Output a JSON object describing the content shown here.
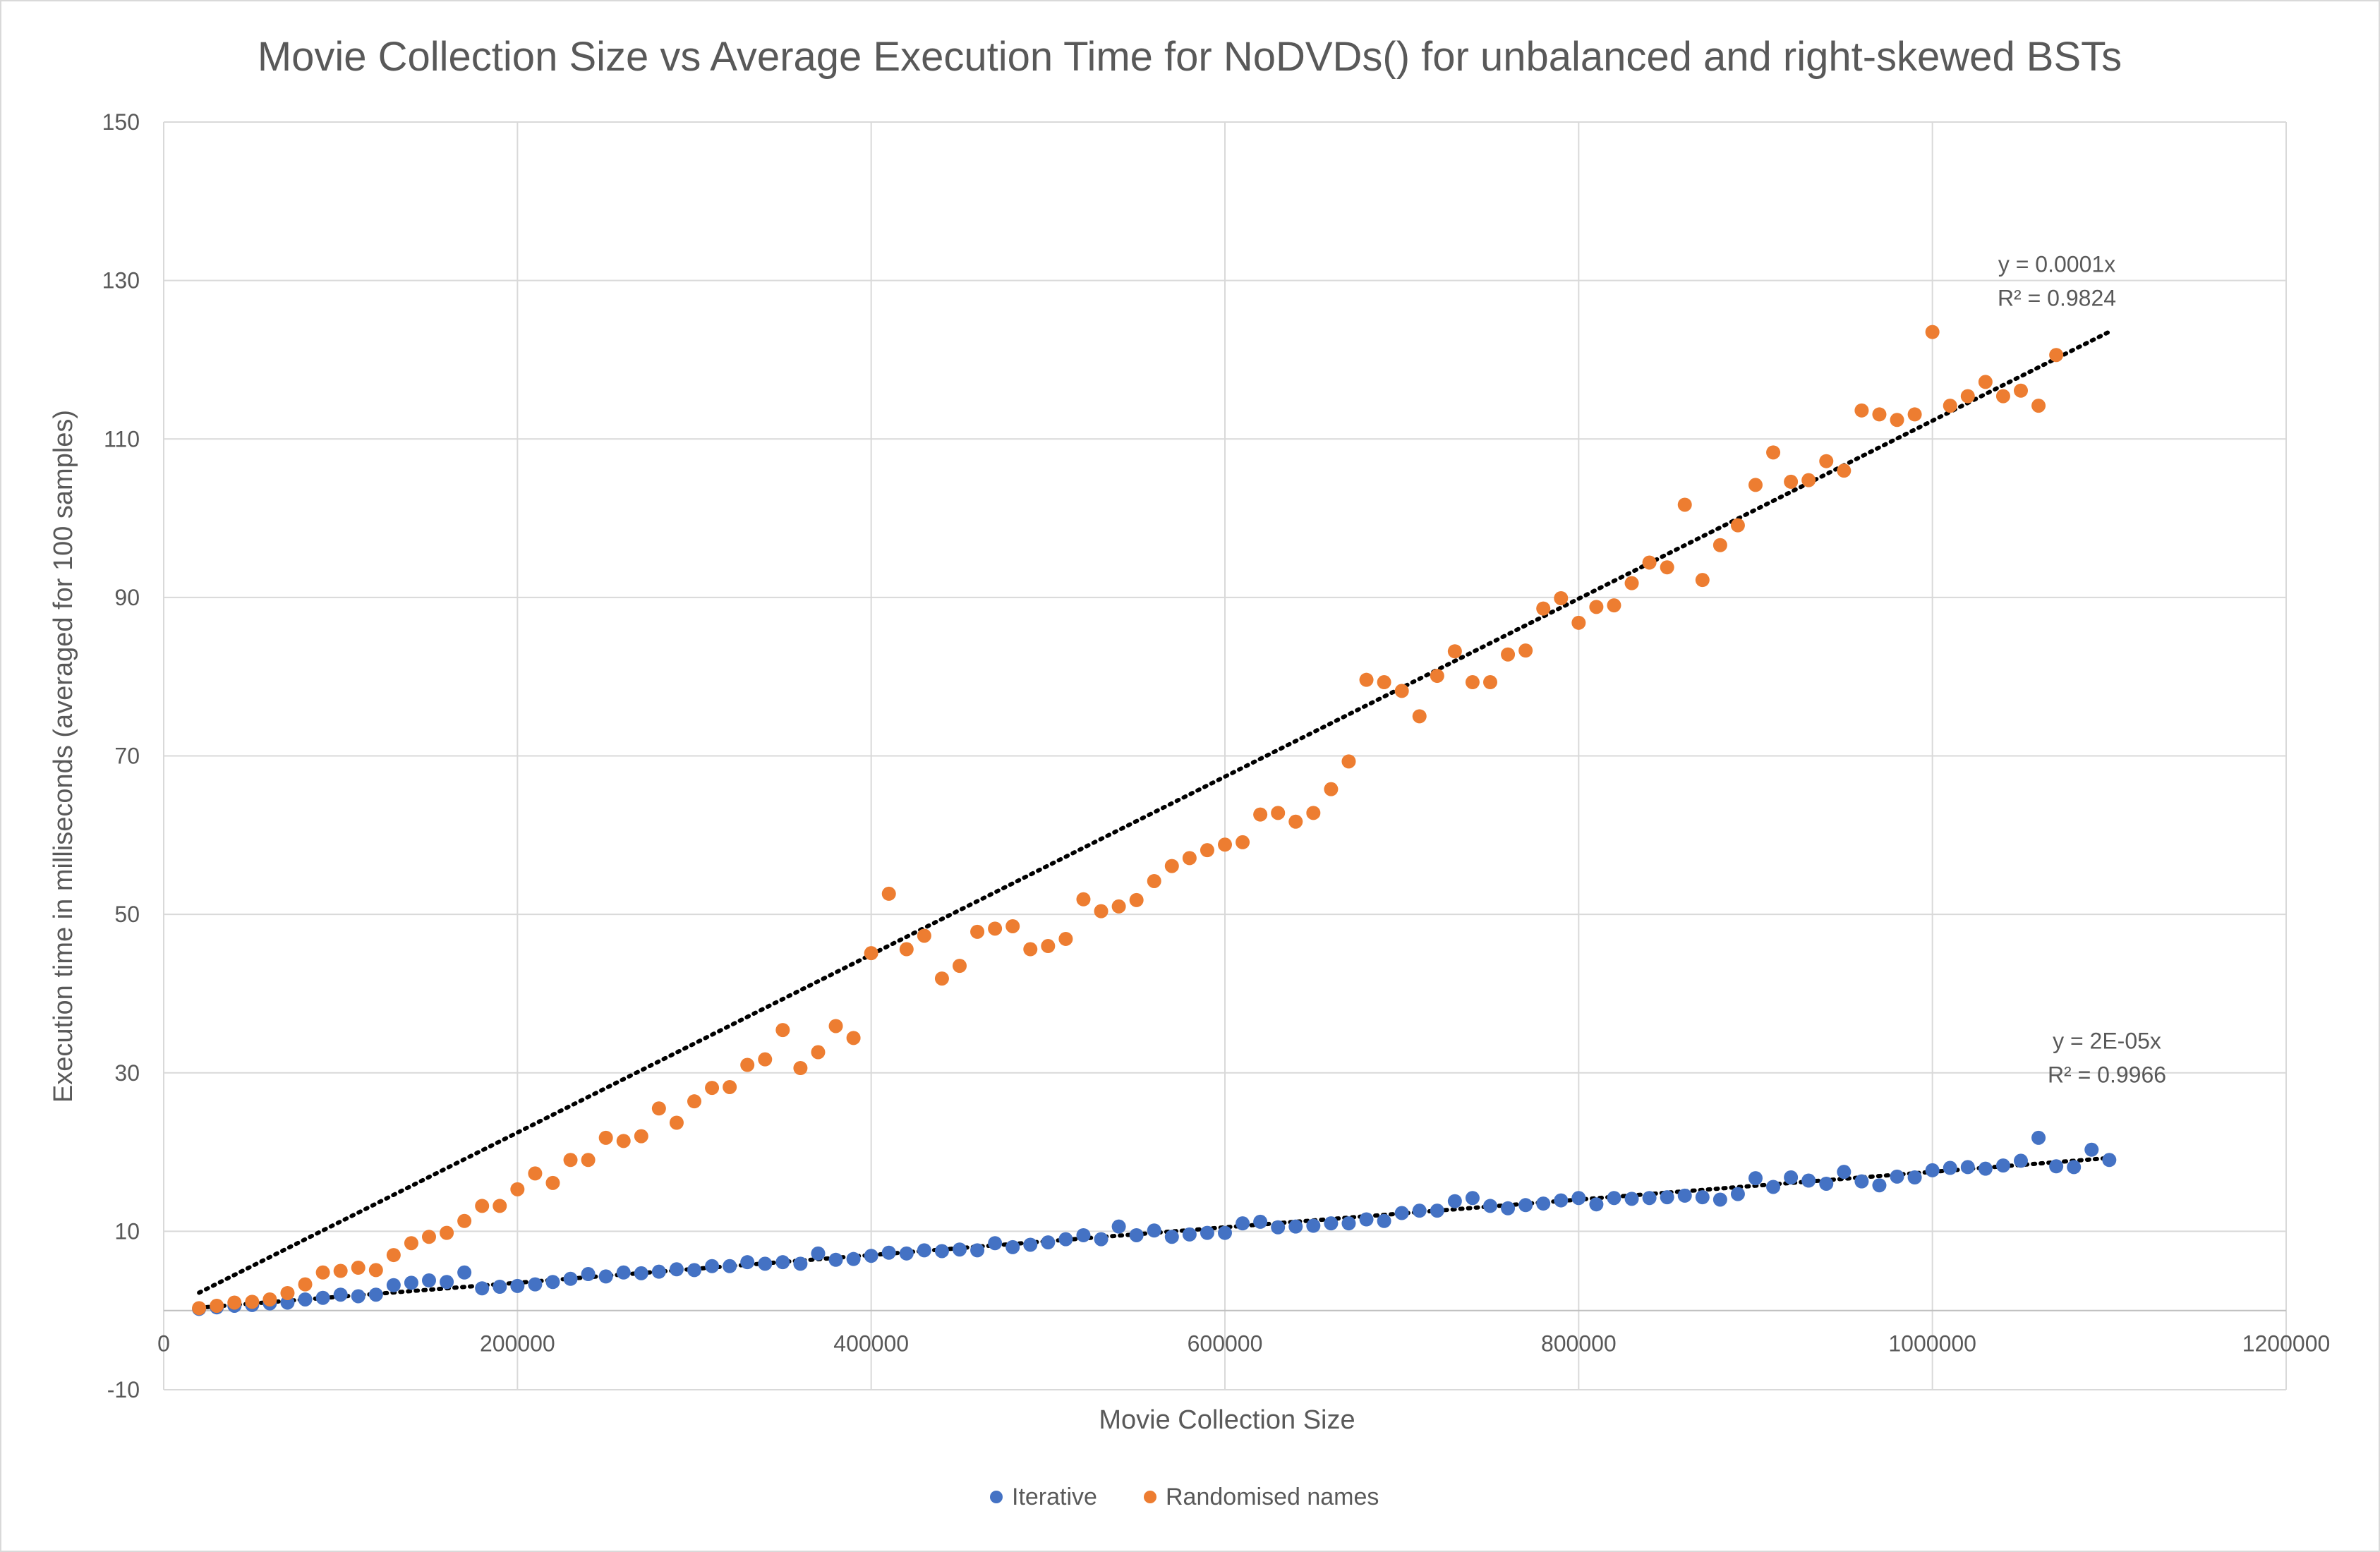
{
  "chart_data": {
    "type": "scatter",
    "title": "Movie Collection Size vs Average Execution Time for NoDVDs() for unbalanced and right-skewed BSTs",
    "xlabel": "Movie Collection Size",
    "ylabel": "Execution time in milliseconds (averaged for 100 samples)",
    "xlim": [
      0,
      1200000
    ],
    "ylim": [
      -10,
      150
    ],
    "x_ticks": [
      0,
      200000,
      400000,
      600000,
      800000,
      1000000,
      1200000
    ],
    "y_ticks": [
      -10,
      10,
      30,
      50,
      70,
      90,
      110,
      130,
      150
    ],
    "x_tick_labels": [
      "0",
      "200000",
      "400000",
      "600000",
      "800000",
      "1000000",
      "1200000"
    ],
    "y_tick_labels": [
      "-10",
      "10",
      "30",
      "50",
      "70",
      "90",
      "110",
      "130",
      "150"
    ],
    "grid": true,
    "legend_position": "bottom",
    "series": [
      {
        "name": "Iterative",
        "color": "#4472c4",
        "x": [
          20000,
          30000,
          40000,
          50000,
          60000,
          70000,
          80000,
          90000,
          100000,
          110000,
          120000,
          130000,
          140000,
          150000,
          160000,
          170000,
          180000,
          190000,
          200000,
          210000,
          220000,
          230000,
          240000,
          250000,
          260000,
          270000,
          280000,
          290000,
          300000,
          310000,
          320000,
          330000,
          340000,
          350000,
          360000,
          370000,
          380000,
          390000,
          400000,
          410000,
          420000,
          430000,
          440000,
          450000,
          460000,
          470000,
          480000,
          490000,
          500000,
          510000,
          520000,
          530000,
          540000,
          550000,
          560000,
          570000,
          580000,
          590000,
          600000,
          610000,
          620000,
          630000,
          640000,
          650000,
          660000,
          670000,
          680000,
          690000,
          700000,
          710000,
          720000,
          730000,
          740000,
          750000,
          760000,
          770000,
          780000,
          790000,
          800000,
          810000,
          820000,
          830000,
          840000,
          850000,
          860000,
          870000,
          880000,
          890000,
          900000,
          910000,
          920000,
          930000,
          940000,
          950000,
          960000,
          970000,
          980000,
          990000,
          1000000,
          1010000,
          1020000,
          1030000,
          1040000,
          1050000,
          1060000,
          1070000,
          1080000,
          1090000,
          1100000
        ],
        "y": [
          0.2,
          0.4,
          0.6,
          0.7,
          0.9,
          1.0,
          1.4,
          1.6,
          2.0,
          1.8,
          2.0,
          3.2,
          3.5,
          3.8,
          3.6,
          4.8,
          2.8,
          3.0,
          3.1,
          3.3,
          3.6,
          4.0,
          4.6,
          4.3,
          4.8,
          4.7,
          4.9,
          5.2,
          5.1,
          5.6,
          5.6,
          6.1,
          5.9,
          6.1,
          5.9,
          7.2,
          6.4,
          6.5,
          6.9,
          7.3,
          7.2,
          7.6,
          7.5,
          7.7,
          7.6,
          8.5,
          8.0,
          8.3,
          8.6,
          9.0,
          9.5,
          9.0,
          10.6,
          9.5,
          10.1,
          9.3,
          9.6,
          9.8,
          9.8,
          11.0,
          11.2,
          10.5,
          10.6,
          10.7,
          11.0,
          11.0,
          11.5,
          11.3,
          12.3,
          12.6,
          12.6,
          13.8,
          14.2,
          13.2,
          12.9,
          13.3,
          13.5,
          13.9,
          14.2,
          13.4,
          14.2,
          14.1,
          14.2,
          14.3,
          14.5,
          14.3,
          14.0,
          14.7,
          16.7,
          15.6,
          16.8,
          16.4,
          16.0,
          17.5,
          16.3,
          15.8,
          16.9,
          16.8,
          17.7,
          18.0,
          18.1,
          17.9,
          18.3,
          18.9,
          21.8,
          18.2,
          18.1,
          20.3,
          19.0
        ]
      },
      {
        "name": "Randomised names",
        "color": "#ed7d31",
        "x": [
          20000,
          30000,
          40000,
          50000,
          60000,
          70000,
          80000,
          90000,
          100000,
          110000,
          120000,
          130000,
          140000,
          150000,
          160000,
          170000,
          180000,
          190000,
          200000,
          210000,
          220000,
          230000,
          240000,
          250000,
          260000,
          270000,
          280000,
          290000,
          300000,
          310000,
          320000,
          330000,
          340000,
          350000,
          360000,
          370000,
          380000,
          390000,
          400000,
          410000,
          420000,
          430000,
          440000,
          450000,
          460000,
          470000,
          480000,
          490000,
          500000,
          510000,
          520000,
          530000,
          540000,
          550000,
          560000,
          570000,
          580000,
          590000,
          600000,
          610000,
          620000,
          630000,
          640000,
          650000,
          660000,
          670000,
          680000,
          690000,
          700000,
          710000,
          720000,
          730000,
          740000,
          750000,
          760000,
          770000,
          780000,
          790000,
          800000,
          810000,
          820000,
          830000,
          840000,
          850000,
          860000,
          870000,
          880000,
          890000,
          900000,
          910000,
          920000,
          930000,
          940000,
          950000,
          960000,
          970000,
          980000,
          990000,
          1000000,
          1010000,
          1020000,
          1030000,
          1040000,
          1050000,
          1060000,
          1070000
        ],
        "y": [
          0.3,
          0.6,
          1.0,
          1.1,
          1.4,
          2.2,
          3.3,
          4.8,
          5.0,
          5.4,
          5.1,
          7.0,
          8.5,
          9.3,
          9.8,
          11.3,
          13.2,
          13.2,
          15.3,
          17.3,
          16.1,
          19.0,
          19.0,
          21.8,
          21.4,
          22.0,
          25.5,
          23.7,
          26.4,
          28.1,
          28.2,
          31.0,
          31.7,
          35.4,
          30.6,
          32.6,
          35.9,
          34.4,
          45.1,
          52.6,
          45.6,
          47.3,
          41.9,
          43.5,
          47.8,
          48.2,
          48.5,
          45.6,
          46.0,
          46.9,
          51.9,
          50.4,
          51.0,
          51.8,
          54.2,
          56.1,
          57.1,
          58.1,
          58.8,
          59.1,
          62.6,
          62.8,
          61.7,
          62.8,
          65.8,
          69.3,
          79.6,
          79.3,
          78.2,
          75.0,
          80.1,
          83.2,
          79.3,
          79.3,
          82.8,
          83.3,
          88.6,
          89.9,
          86.8,
          88.8,
          89.0,
          91.8,
          94.4,
          93.8,
          101.7,
          92.2,
          96.6,
          99.1,
          104.2,
          108.3,
          104.6,
          104.8,
          107.2,
          106.0,
          113.6,
          113.1,
          112.4,
          113.1,
          123.5,
          114.2,
          115.4,
          117.2,
          115.4,
          116.1,
          114.2,
          120.6
        ]
      }
    ],
    "trendlines": [
      {
        "series": "Randomised names",
        "equation": "y = 0.0001x",
        "r_squared": "R² = 0.9824",
        "x_range": [
          20000,
          1100000
        ],
        "slope": 0.0001123
      },
      {
        "series": "Iterative",
        "equation": "y = 2E-05x",
        "r_squared": "R² = 0.9966",
        "x_range": [
          20000,
          1100000
        ],
        "slope": 1.75e-05
      }
    ]
  }
}
